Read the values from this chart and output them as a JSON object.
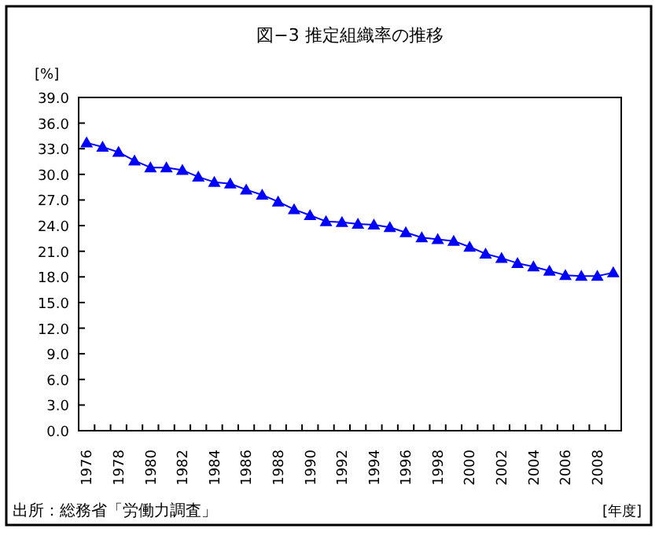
{
  "chart_data": {
    "type": "line",
    "title": "図−3 推定組織率の推移",
    "ylabel": "[%]",
    "xlabel": "[年度]",
    "annotations": [
      "出所：総務省「労働力調査」"
    ],
    "categories": [
      "1976",
      null,
      "1978",
      null,
      "1980",
      null,
      "1982",
      null,
      "1984",
      null,
      "1986",
      null,
      "1988",
      null,
      "1990",
      null,
      "1992",
      null,
      "1994",
      null,
      "1996",
      null,
      "1998",
      null,
      "2000",
      null,
      "2002",
      null,
      "2004",
      null,
      "2006",
      null,
      "2008",
      null
    ],
    "series": [
      {
        "color": "#0000ff",
        "values": [
          33.7,
          33.2,
          32.6,
          31.6,
          30.8,
          30.8,
          30.5,
          29.7,
          29.1,
          28.9,
          28.2,
          27.6,
          26.8,
          25.9,
          25.2,
          24.5,
          24.4,
          24.2,
          24.1,
          23.8,
          23.2,
          22.6,
          22.4,
          22.2,
          21.5,
          20.7,
          20.2,
          19.6,
          19.2,
          18.7,
          18.2,
          18.1,
          18.1,
          18.5
        ]
      }
    ],
    "ylim": [
      0,
      39
    ],
    "yticks": [
      {
        "value": 0,
        "label": "0.0"
      },
      {
        "value": 3,
        "label": "3.0"
      },
      {
        "value": 6,
        "label": "6.0"
      },
      {
        "value": 9,
        "label": "9.0"
      },
      {
        "value": 12,
        "label": "12.0"
      },
      {
        "value": 15,
        "label": "15.0"
      },
      {
        "value": 18,
        "label": "18.0"
      },
      {
        "value": 21,
        "label": "21.0"
      },
      {
        "value": 24,
        "label": "24.0"
      },
      {
        "value": 27,
        "label": "27.0"
      },
      {
        "value": 30,
        "label": "30.0"
      },
      {
        "value": 33,
        "label": "33.0"
      },
      {
        "value": 36,
        "label": "36.0"
      },
      {
        "value": 39,
        "label": "39.0"
      }
    ],
    "marker": "triangle"
  }
}
